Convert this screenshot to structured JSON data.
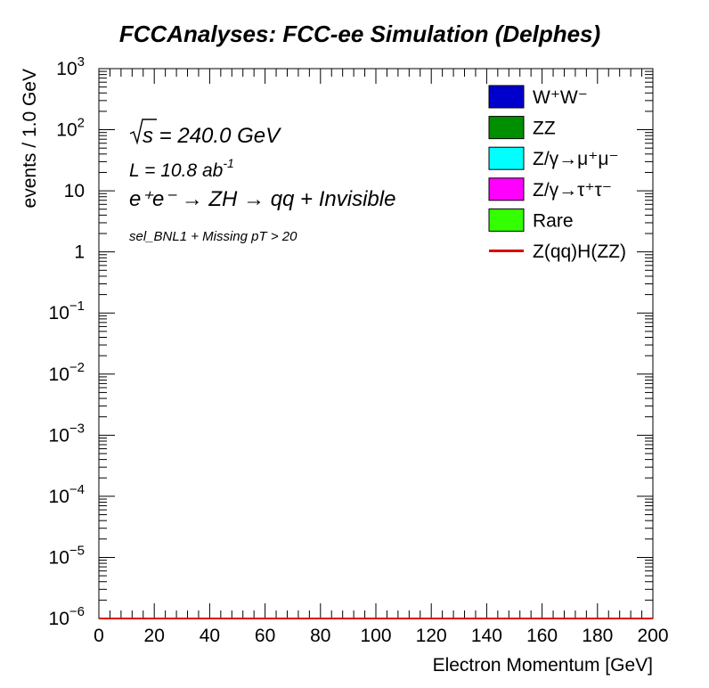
{
  "chart_data": {
    "type": "bar",
    "title": "FCCAnalyses: FCC-ee Simulation (Delphes)",
    "xlabel": "Electron Momentum [GeV]",
    "ylabel": "events / 1.0 GeV",
    "xlim": [
      0,
      200
    ],
    "ylim": [
      1e-06,
      1000
    ],
    "log_y": true,
    "bin_width": 1,
    "x_ticks": [
      "0",
      "20",
      "40",
      "60",
      "80",
      "100",
      "120",
      "140",
      "160",
      "180",
      "200"
    ],
    "y_ticks": [
      {
        "base": "10",
        "exp": "3"
      },
      {
        "base": "10",
        "exp": "2"
      },
      {
        "base": "10",
        "exp": ""
      },
      {
        "base": "1",
        "exp": ""
      },
      {
        "base": "10",
        "exp": "−1"
      },
      {
        "base": "10",
        "exp": "−2"
      },
      {
        "base": "10",
        "exp": "−3"
      },
      {
        "base": "10",
        "exp": "−4"
      },
      {
        "base": "10",
        "exp": "−5"
      },
      {
        "base": "10",
        "exp": "−6"
      }
    ],
    "annotations": {
      "energy": {
        "prefix": "s",
        "rest": " = 240.0 GeV"
      },
      "lumi": {
        "text": "L = 10.8 ab",
        "sup": "-1"
      },
      "process": "e⁺e⁻ → ZH → qq + Invisible",
      "selection": "sel_BNL1 + Missing pT > 20"
    },
    "legend_position": "top-right",
    "series": [
      {
        "name": "W⁺W⁻",
        "kind": "fill",
        "color": "#0000cc",
        "values": []
      },
      {
        "name": "ZZ",
        "kind": "fill",
        "color": "#008f00",
        "values": []
      },
      {
        "name": "Z/γ→μ⁺μ⁻",
        "kind": "fill",
        "color": "#00ffff",
        "values": []
      },
      {
        "name": "Z/γ→τ⁺τ⁻",
        "kind": "fill",
        "color": "#ff00ff",
        "values": []
      },
      {
        "name": "Rare",
        "kind": "fill",
        "color": "#33ff00",
        "values": []
      },
      {
        "name": "Z(qq)H(ZZ)",
        "kind": "line",
        "color": "#dd0000",
        "values": []
      }
    ]
  }
}
